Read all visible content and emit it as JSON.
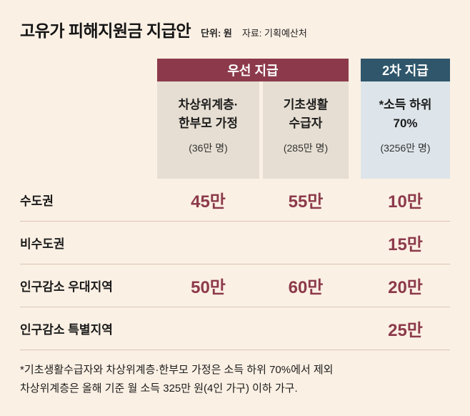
{
  "header": {
    "title": "고유가 피해지원금 지급안",
    "unit_label": "단위: 원",
    "source_label": "자료: 기획예산처"
  },
  "table": {
    "groups": [
      {
        "label": "우선 지급"
      },
      {
        "label": "2차 지급"
      }
    ],
    "columns": [
      {
        "line1": "차상위계층·",
        "line2": "한부모 가정",
        "count": "(36만 명)"
      },
      {
        "line1": "기초생활",
        "line2": "수급자",
        "count": "(285만 명)"
      },
      {
        "line1": "*소득 하위",
        "line2": "70%",
        "count": "(3256만 명)"
      }
    ],
    "rows": [
      {
        "label": "수도권",
        "values": [
          "45만",
          "55만",
          "10만"
        ]
      },
      {
        "label": "비수도권",
        "values": [
          "",
          "",
          "15만"
        ]
      },
      {
        "label": "인구감소 우대지역",
        "values": [
          "50만",
          "60만",
          "20만"
        ]
      },
      {
        "label": "인구감소 특별지역",
        "values": [
          "",
          "",
          "25만"
        ]
      }
    ]
  },
  "footnotes": [
    "*기초생활수급자와 차상위계층·한부모 가정은 소득 하위 70%에서 제외",
    "차상위계층은 올해 기준 월 소득 325만 원(4인 가구) 이하 가구."
  ],
  "colors": {
    "background": "#fbf0e4",
    "priority_header": "#8c3a4b",
    "secondary_header": "#2f566b",
    "priority_column_bg": "#e6ded2",
    "secondary_column_bg": "#dde5ea",
    "value_text": "#8c3a4b",
    "divider": "#d9c5b4"
  },
  "chart_data": {
    "type": "table",
    "title": "고유가 피해지원금 지급안",
    "unit": "원",
    "source": "기획예산처",
    "column_groups": [
      "우선 지급",
      "우선 지급",
      "2차 지급"
    ],
    "columns": [
      "차상위계층·한부모 가정 (36만 명)",
      "기초생활 수급자 (285만 명)",
      "*소득 하위 70% (3256만 명)"
    ],
    "row_labels": [
      "수도권",
      "비수도권",
      "인구감소 우대지역",
      "인구감소 특별지역"
    ],
    "values_man_won": [
      [
        45,
        55,
        10
      ],
      [
        null,
        null,
        15
      ],
      [
        50,
        60,
        20
      ],
      [
        null,
        null,
        25
      ]
    ],
    "footnotes": [
      "*기초생활수급자와 차상위계층·한부모 가정은 소득 하위 70%에서 제외",
      "차상위계층은 올해 기준 월 소득 325만 원(4인 가구) 이하 가구."
    ]
  }
}
